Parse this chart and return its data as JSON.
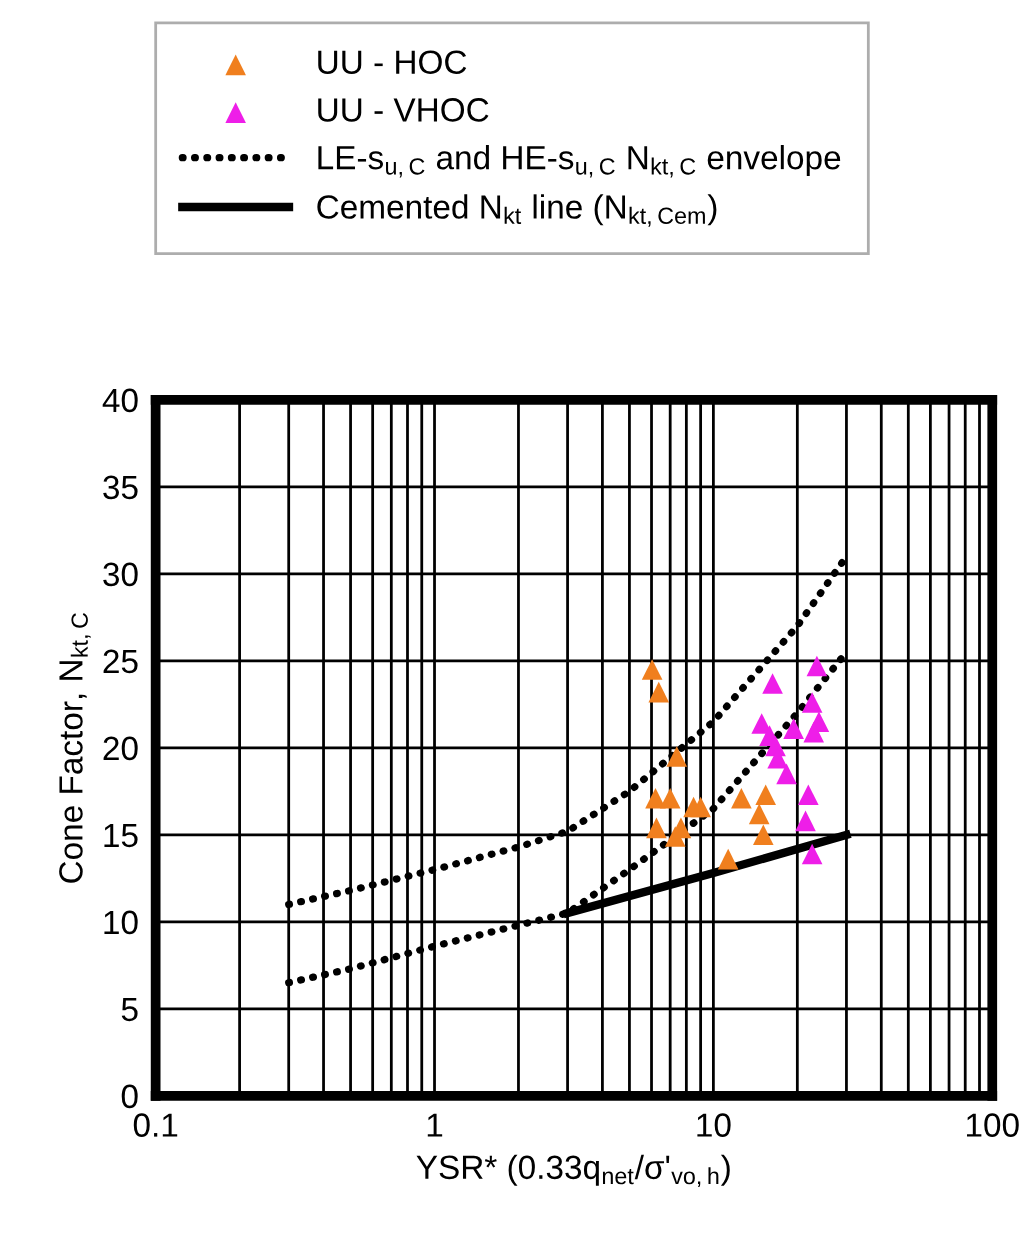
{
  "chart_data": {
    "type": "scatter",
    "xlabel": "YSR* (0.33q$_{net}$/σ'$_{vo,h}$)",
    "ylabel": "Cone Factor, N$_{kt,C}$",
    "log": "x",
    "xlim": [
      0.1,
      100
    ],
    "xticks": [
      0.1,
      1,
      10,
      100
    ],
    "ylim": [
      0,
      40
    ],
    "yticks": [
      0,
      5,
      10,
      15,
      20,
      25,
      30,
      35,
      40
    ],
    "grid": true,
    "legend": "top",
    "series": [
      {
        "name": "UU - HOC",
        "marker": "triangle",
        "color": "#f07f1e",
        "x": [
          6.03,
          6.37,
          7.39,
          6.2,
          7.0,
          8.49,
          9.0,
          6.25,
          7.3,
          7.65,
          12.6,
          15.4,
          14.6,
          15.1,
          11.3
        ],
        "values": [
          24.5,
          23.2,
          19.5,
          17.1,
          17.1,
          16.6,
          16.6,
          15.4,
          14.9,
          15.4,
          17.1,
          17.3,
          16.2,
          15.0,
          13.6
        ]
      },
      {
        "name": "UU - VHOC",
        "marker": "triangle",
        "color": "#ee1ee8",
        "x": [
          23.5,
          16.3,
          22.6,
          23.9,
          22.9,
          19.4,
          14.9,
          15.9,
          16.7,
          17.0,
          18.3,
          21.9,
          21.4,
          22.6
        ],
        "values": [
          24.7,
          23.7,
          22.6,
          21.5,
          20.9,
          21.1,
          21.4,
          20.7,
          20.1,
          19.4,
          18.5,
          17.3,
          15.8,
          13.9
        ]
      },
      {
        "name": "LE-s$_{u,C}$ and HE-s$_{u,C}$ N$_{kt,C}$ envelope",
        "type": "line",
        "marker": "none",
        "line_style": "dotted",
        "color": "#000000",
        "x": [
          0.3,
          0.5,
          1,
          2,
          3,
          5,
          10,
          20,
          30
        ],
        "values": [
          11,
          11.8,
          13,
          14.3,
          15.2,
          17.5,
          21.5,
          27,
          31
        ]
      },
      {
        "type": "line",
        "marker": "none",
        "line_style": "dotted",
        "color": "#000000",
        "x": [
          0.3,
          0.5,
          1,
          2,
          3,
          5,
          10,
          20,
          30
        ],
        "values": [
          6.5,
          7.3,
          8.6,
          9.8,
          10.5,
          13,
          16.5,
          22,
          25.5
        ]
      },
      {
        "name": "Cemented N$_{kt}$ line (N$_{kt,Cem}$)",
        "type": "line",
        "marker": "none",
        "line_style": "solid",
        "color": "#000000",
        "x": [
          3,
          10,
          30
        ],
        "values": [
          10.5,
          12.8,
          15
        ]
      }
    ]
  }
}
